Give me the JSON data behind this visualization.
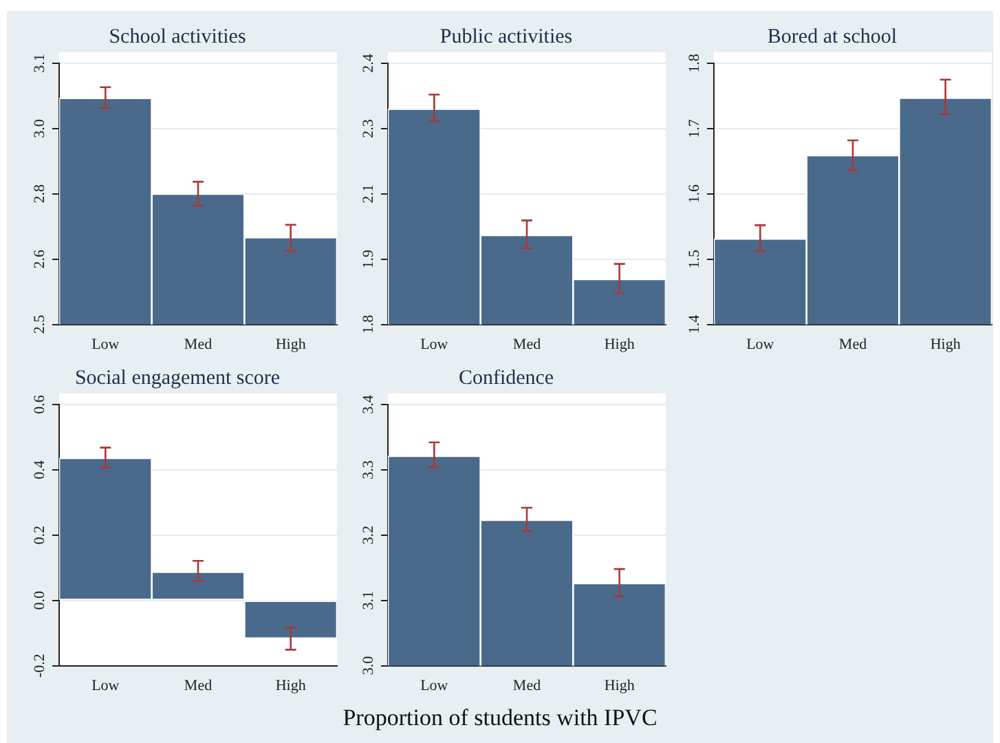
{
  "chart_data": [
    {
      "type": "bar",
      "title": "School activities",
      "categories": [
        "Low",
        "Med",
        "High"
      ],
      "values": [
        3.02,
        2.8,
        2.7
      ],
      "errors": [
        [
          2.997,
          3.045
        ],
        [
          2.773,
          2.828
        ],
        [
          2.669,
          2.729
        ]
      ],
      "color": "#4a6a8c",
      "ylim": [
        2.5,
        3.1
      ],
      "yticks": [
        {
          "value": 2.5,
          "label": "2.5"
        },
        {
          "value": 2.65,
          "label": "2.6"
        },
        {
          "value": 2.8,
          "label": "2.8"
        },
        {
          "value": 2.95,
          "label": "3.0"
        },
        {
          "value": 3.1,
          "label": "3.1"
        }
      ],
      "grid": "y",
      "annotations": [
        "Proportion of students with IPVC"
      ]
    },
    {
      "type": "bar",
      "title": "Public activities",
      "categories": [
        "Low",
        "Med",
        "High"
      ],
      "values": [
        2.295,
        2.005,
        1.904
      ],
      "errors": [
        [
          2.267,
          2.328
        ],
        [
          1.975,
          2.039
        ],
        [
          1.872,
          1.939
        ]
      ],
      "color": "#4a6a8c",
      "ylim": [
        1.8,
        2.4
      ],
      "yticks": [
        {
          "value": 1.8,
          "label": "1.8"
        },
        {
          "value": 1.95,
          "label": "1.9"
        },
        {
          "value": 2.1,
          "label": "2.1"
        },
        {
          "value": 2.25,
          "label": "2.3"
        },
        {
          "value": 2.4,
          "label": "2.4"
        }
      ],
      "grid": "y"
    },
    {
      "type": "bar",
      "title": "Bored at school",
      "categories": [
        "Low",
        "Med",
        "High"
      ],
      "values": [
        1.531,
        1.659,
        1.747
      ],
      "errors": [
        [
          1.512,
          1.552
        ],
        [
          1.636,
          1.682
        ],
        [
          1.722,
          1.775
        ]
      ],
      "color": "#4a6a8c",
      "ylim": [
        1.4,
        1.8
      ],
      "yticks": [
        1.4,
        1.5,
        1.6,
        1.7,
        1.8
      ],
      "grid": "y"
    },
    {
      "type": "bar",
      "title": "Social engagement score",
      "categories": [
        "Low",
        "Med",
        "High"
      ],
      "values": [
        0.436,
        0.087,
        -0.116
      ],
      "errors": [
        [
          0.407,
          0.468
        ],
        [
          0.06,
          0.121
        ],
        [
          -0.151,
          -0.083
        ]
      ],
      "color": "#4a6a8c",
      "ylim": [
        -0.2,
        0.6
      ],
      "yticks": [
        {
          "value": -0.2,
          "label": "-0.2"
        },
        {
          "value": 0,
          "label": "0.0"
        },
        {
          "value": 0.2,
          "label": "0.2"
        },
        {
          "value": 0.4,
          "label": "0.4"
        },
        {
          "value": 0.6,
          "label": "0.6"
        }
      ],
      "grid": "y"
    },
    {
      "type": "bar",
      "title": "Confidence",
      "categories": [
        "Low",
        "Med",
        "High"
      ],
      "values": [
        3.321,
        3.223,
        3.126
      ],
      "errors": [
        [
          3.304,
          3.342
        ],
        [
          3.206,
          3.242
        ],
        [
          3.106,
          3.148
        ]
      ],
      "color": "#4a6a8c",
      "ylim": [
        3.0,
        3.4
      ],
      "yticks": [
        {
          "value": 3.0,
          "label": "3.0"
        },
        {
          "value": 3.1,
          "label": "3.1"
        },
        {
          "value": 3.2,
          "label": "3.2"
        },
        {
          "value": 3.3,
          "label": "3.3"
        },
        {
          "value": 3.4,
          "label": "3.4"
        }
      ],
      "grid": "y"
    }
  ]
}
